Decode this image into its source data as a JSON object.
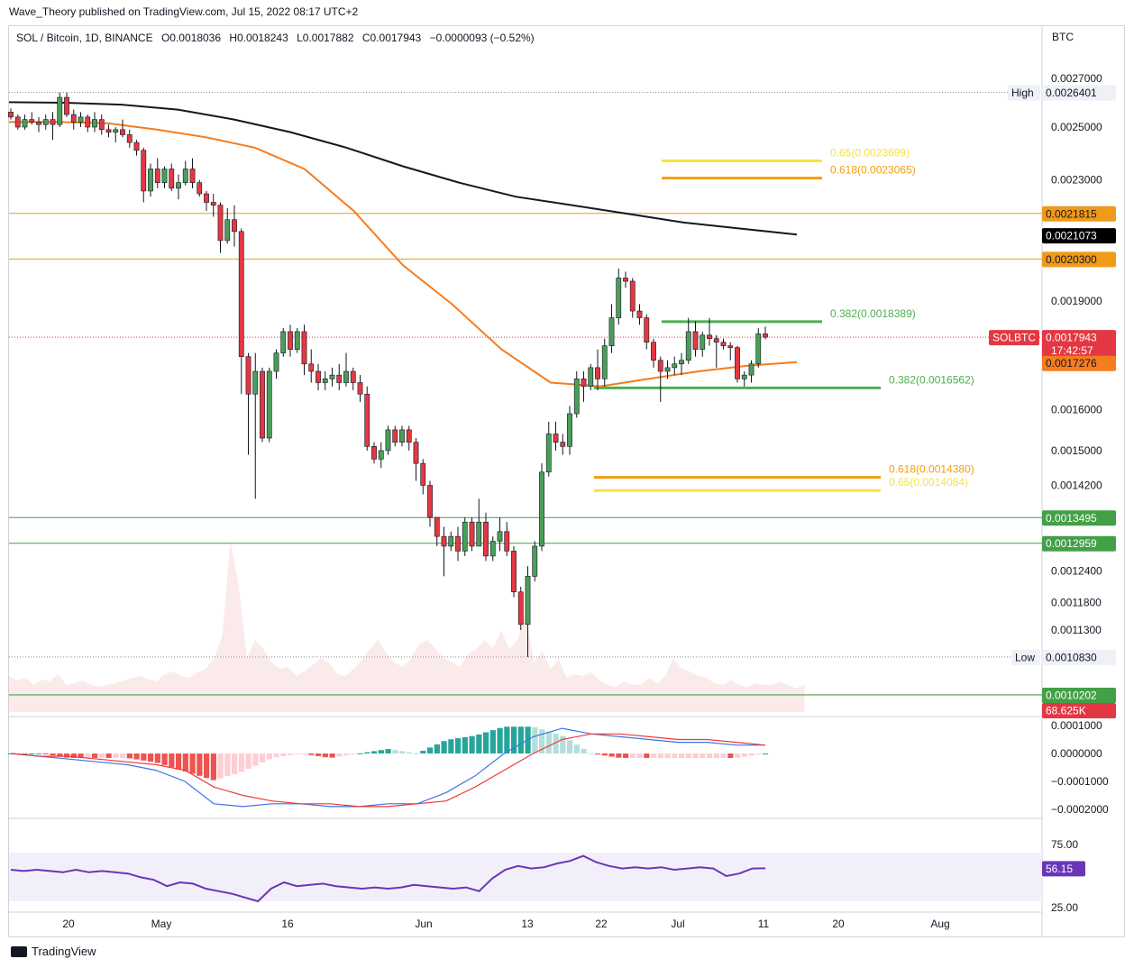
{
  "header": {
    "publisher": "Wave_Theory published on TradingView.com, Jul 15, 2022 08:17 UTC+2"
  },
  "legend": {
    "symbol": "SOL / Bitcoin, 1D, BINANCE",
    "open": "O0.0018036",
    "high": "H0.0018243",
    "low": "L0.0017882",
    "close": "C0.0017943",
    "change": "−0.0000093 (−0.52%)"
  },
  "currency_label": "BTC",
  "footer": {
    "brand": "TradingView"
  },
  "colors": {
    "up": "#4a9e58",
    "down": "#e33843",
    "ema_fast": "#f57c1f",
    "ema_slow": "#131722",
    "fib_618": "#f59e0b",
    "fib_65": "#f5e43c",
    "fib_382": "#4caf50",
    "support": "#43a047",
    "resistance": "#f09a1a",
    "macd": "#3b74e6",
    "signal": "#ef3a3a",
    "rsi": "#6b35b8"
  },
  "chart_data": {
    "type": "candlestick",
    "title": "SOL / Bitcoin, 1D, BINANCE",
    "price_ticks": [
      "0.0027000",
      "0.0025000",
      "0.0023000",
      "0.0019000",
      "0.0016000",
      "0.0015000",
      "0.0014200",
      "0.0012400",
      "0.0011800",
      "0.0011300"
    ],
    "x_ticks": [
      "20",
      "May",
      "16",
      "Jun",
      "13",
      "22",
      "Jul",
      "11",
      "20",
      "Aug"
    ],
    "candles": [
      [
        0.00256,
        0.002575,
        0.00253,
        0.00254
      ],
      [
        0.00254,
        0.00255,
        0.00249,
        0.0025
      ],
      [
        0.0025,
        0.00255,
        0.00249,
        0.00253
      ],
      [
        0.00253,
        0.00256,
        0.00251,
        0.00252
      ],
      [
        0.00252,
        0.00254,
        0.00248,
        0.00251
      ],
      [
        0.00251,
        0.00255,
        0.00249,
        0.00253
      ],
      [
        0.00253,
        0.00256,
        0.00245,
        0.00251
      ],
      [
        0.00251,
        0.00264,
        0.0025,
        0.00262
      ],
      [
        0.00262,
        0.00264,
        0.00254,
        0.00255
      ],
      [
        0.00255,
        0.00257,
        0.00249,
        0.00252
      ],
      [
        0.00252,
        0.00256,
        0.0025,
        0.00254
      ],
      [
        0.00254,
        0.00255,
        0.00248,
        0.0025
      ],
      [
        0.0025,
        0.00256,
        0.00248,
        0.00253
      ],
      [
        0.00253,
        0.00255,
        0.00247,
        0.00249
      ],
      [
        0.00249,
        0.00251,
        0.00246,
        0.00248
      ],
      [
        0.00248,
        0.0025,
        0.00244,
        0.00249
      ],
      [
        0.00249,
        0.00253,
        0.00246,
        0.00247
      ],
      [
        0.00247,
        0.00249,
        0.00242,
        0.00244
      ],
      [
        0.00244,
        0.00245,
        0.00239,
        0.00241
      ],
      [
        0.00241,
        0.00242,
        0.00222,
        0.00226
      ],
      [
        0.00226,
        0.00236,
        0.00224,
        0.00234
      ],
      [
        0.00234,
        0.00238,
        0.00227,
        0.00229
      ],
      [
        0.00229,
        0.00235,
        0.00227,
        0.00234
      ],
      [
        0.00234,
        0.00236,
        0.00226,
        0.00227
      ],
      [
        0.00227,
        0.00232,
        0.00223,
        0.00229
      ],
      [
        0.00229,
        0.00237,
        0.00228,
        0.00234
      ],
      [
        0.00234,
        0.00238,
        0.00227,
        0.00229
      ],
      [
        0.00229,
        0.0023,
        0.00224,
        0.00225
      ],
      [
        0.00225,
        0.00226,
        0.00219,
        0.00222
      ],
      [
        0.00222,
        0.00225,
        0.00217,
        0.00221
      ],
      [
        0.00221,
        0.00222,
        0.00205,
        0.00209
      ],
      [
        0.00209,
        0.0022,
        0.00208,
        0.00216
      ],
      [
        0.00216,
        0.00221,
        0.00207,
        0.00212
      ],
      [
        0.00212,
        0.00213,
        0.00164,
        0.00174
      ],
      [
        0.00174,
        0.00175,
        0.00149,
        0.00164
      ],
      [
        0.00164,
        0.00175,
        0.00139,
        0.0017
      ],
      [
        0.0017,
        0.00171,
        0.00152,
        0.00153
      ],
      [
        0.00153,
        0.00171,
        0.00152,
        0.0017
      ],
      [
        0.0017,
        0.00176,
        0.00168,
        0.00175
      ],
      [
        0.00175,
        0.00182,
        0.00174,
        0.00181
      ],
      [
        0.00181,
        0.00183,
        0.00174,
        0.00176
      ],
      [
        0.00176,
        0.00182,
        0.00175,
        0.00181
      ],
      [
        0.00181,
        0.00183,
        0.00169,
        0.00172
      ],
      [
        0.00172,
        0.00176,
        0.00167,
        0.0017
      ],
      [
        0.0017,
        0.00172,
        0.00165,
        0.00167
      ],
      [
        0.00167,
        0.0017,
        0.00165,
        0.00168
      ],
      [
        0.00168,
        0.00171,
        0.00166,
        0.00169
      ],
      [
        0.00169,
        0.00172,
        0.00165,
        0.00167
      ],
      [
        0.00167,
        0.00175,
        0.00166,
        0.0017
      ],
      [
        0.0017,
        0.00171,
        0.00165,
        0.00167
      ],
      [
        0.00167,
        0.00169,
        0.00162,
        0.00164
      ],
      [
        0.00164,
        0.00166,
        0.0015,
        0.00151
      ],
      [
        0.00151,
        0.00152,
        0.00147,
        0.00148
      ],
      [
        0.00148,
        0.00152,
        0.00146,
        0.0015
      ],
      [
        0.0015,
        0.00156,
        0.00149,
        0.00155
      ],
      [
        0.00155,
        0.00156,
        0.00151,
        0.00152
      ],
      [
        0.00152,
        0.00156,
        0.00151,
        0.00155
      ],
      [
        0.00155,
        0.00156,
        0.0015,
        0.00152
      ],
      [
        0.00152,
        0.00153,
        0.00143,
        0.00147
      ],
      [
        0.00147,
        0.00148,
        0.0014,
        0.00142
      ],
      [
        0.00142,
        0.00143,
        0.00133,
        0.00135
      ],
      [
        0.00135,
        0.00135,
        0.00129,
        0.00131
      ],
      [
        0.00131,
        0.00133,
        0.00123,
        0.00129
      ],
      [
        0.00129,
        0.00132,
        0.00128,
        0.00131
      ],
      [
        0.00131,
        0.00133,
        0.00126,
        0.00128
      ],
      [
        0.00128,
        0.00135,
        0.00127,
        0.00134
      ],
      [
        0.00134,
        0.00135,
        0.00128,
        0.00129
      ],
      [
        0.00129,
        0.00139,
        0.00129,
        0.00134
      ],
      [
        0.00134,
        0.00136,
        0.00126,
        0.00127
      ],
      [
        0.00127,
        0.00131,
        0.00126,
        0.0013
      ],
      [
        0.0013,
        0.00135,
        0.00128,
        0.00132
      ],
      [
        0.00132,
        0.00134,
        0.00127,
        0.00128
      ],
      [
        0.00128,
        0.00129,
        0.00119,
        0.0012
      ],
      [
        0.0012,
        0.00121,
        0.00113,
        0.00114
      ],
      [
        0.00114,
        0.00125,
        0.001083,
        0.00123
      ],
      [
        0.00123,
        0.0013,
        0.00122,
        0.00129
      ],
      [
        0.00129,
        0.00147,
        0.00128,
        0.00145
      ],
      [
        0.00145,
        0.00157,
        0.00144,
        0.00154
      ],
      [
        0.00154,
        0.00157,
        0.0015,
        0.00152
      ],
      [
        0.00152,
        0.00154,
        0.00149,
        0.00151
      ],
      [
        0.00151,
        0.00161,
        0.00149,
        0.00159
      ],
      [
        0.00159,
        0.0017,
        0.00158,
        0.00168
      ],
      [
        0.00168,
        0.0017,
        0.00162,
        0.00166
      ],
      [
        0.00166,
        0.00172,
        0.00165,
        0.00171
      ],
      [
        0.00171,
        0.00176,
        0.00165,
        0.00168
      ],
      [
        0.00168,
        0.00179,
        0.00166,
        0.00177
      ],
      [
        0.00177,
        0.00189,
        0.00175,
        0.00185
      ],
      [
        0.00185,
        0.002,
        0.00183,
        0.00197
      ],
      [
        0.00197,
        0.00199,
        0.00194,
        0.00196
      ],
      [
        0.00196,
        0.00197,
        0.00185,
        0.00187
      ],
      [
        0.00187,
        0.00189,
        0.00183,
        0.00185
      ],
      [
        0.00185,
        0.00186,
        0.00176,
        0.00178
      ],
      [
        0.00178,
        0.00179,
        0.00171,
        0.00173
      ],
      [
        0.00173,
        0.00174,
        0.00162,
        0.0017
      ],
      [
        0.0017,
        0.00173,
        0.00168,
        0.00171
      ],
      [
        0.00171,
        0.00174,
        0.00169,
        0.00172
      ],
      [
        0.00172,
        0.00175,
        0.00169,
        0.00173
      ],
      [
        0.00173,
        0.00185,
        0.00172,
        0.00181
      ],
      [
        0.00181,
        0.00184,
        0.00174,
        0.00176
      ],
      [
        0.00176,
        0.00181,
        0.00174,
        0.0018
      ],
      [
        0.0018,
        0.00185,
        0.00177,
        0.00179
      ],
      [
        0.00179,
        0.0018,
        0.00171,
        0.00178
      ],
      [
        0.00178,
        0.00179,
        0.00176,
        0.00177
      ],
      [
        0.00177,
        0.00178,
        0.00173,
        0.001765
      ],
      [
        0.001765,
        0.00177,
        0.00167,
        0.00168
      ],
      [
        0.00168,
        0.0017,
        0.00166,
        0.00169
      ],
      [
        0.00169,
        0.00173,
        0.00167,
        0.00172
      ],
      [
        0.00172,
        0.00182,
        0.00171,
        0.0018036
      ],
      [
        0.0018036,
        0.0018243,
        0.0017882,
        0.0017943
      ]
    ],
    "ema_slow": [
      0.0026,
      0.002598,
      0.00259,
      0.00257,
      0.00253,
      0.00248,
      0.00242,
      0.00235,
      0.00229,
      0.00224,
      0.00221,
      0.00218,
      0.00215,
      0.00213,
      0.00211
    ],
    "ema_fast": [
      0.00252,
      0.00252,
      0.002515,
      0.00249,
      0.00246,
      0.00242,
      0.00234,
      0.00219,
      0.00201,
      0.00189,
      0.00176,
      0.00167,
      0.00166,
      0.00168,
      0.0017,
      0.001715,
      0.001725
    ],
    "fib_levels": [
      {
        "label": "0.65(0.0023699)",
        "value": 0.0023699,
        "color": "#f5e43c"
      },
      {
        "label": "0.618(0.0023065)",
        "value": 0.0023065,
        "color": "#f59e0b"
      },
      {
        "label": "0.382(0.0018389)",
        "value": 0.0018389,
        "color": "#4caf50"
      },
      {
        "label": "0.382(0.0016562)",
        "value": 0.0016562,
        "color": "#4caf50"
      },
      {
        "label": "0.618(0.0014380)",
        "value": 0.001438,
        "color": "#f59e0b"
      },
      {
        "label": "0.65(0.0014084)",
        "value": 0.0014084,
        "color": "#f5e43c"
      }
    ],
    "horizontal_levels": [
      {
        "value": 0.0021815,
        "label": "0.0021815",
        "color": "#f09a1a"
      },
      {
        "value": 0.00203,
        "label": "0.0020300",
        "color": "#f09a1a"
      },
      {
        "value": 0.0013495,
        "label": "0.0013495",
        "color": "#43a047"
      },
      {
        "value": 0.0012959,
        "label": "0.0012959",
        "color": "#43a047"
      },
      {
        "value": 0.0010202,
        "label": "0.0010202",
        "color": "#43a047"
      }
    ],
    "markers": {
      "high": {
        "label": "High",
        "value": "0.0026401"
      },
      "low": {
        "label": "Low",
        "value": "0.0010830"
      },
      "ema_slow_value": "0.0021073",
      "ema_fast_value": "0.0017276",
      "symbol_tag": "SOLBTC",
      "last_price": "0.0017943",
      "countdown": "17:42:57",
      "volume": "68.625K"
    },
    "macd": {
      "ticks": [
        "0.0001000",
        "0.0000000",
        "−0.0001000",
        "−0.0002000"
      ],
      "macd_line": [
        -0.0,
        -1e-05,
        -2e-05,
        -3e-05,
        -4e-05,
        -6e-05,
        -0.0001,
        -0.00018,
        -0.00019,
        -0.00018,
        -0.00018,
        -0.00019,
        -0.00019,
        -0.00018,
        -0.00018,
        -0.00014,
        -8e-05,
        0.0,
        6e-05,
        9e-05,
        7e-05,
        6e-05,
        5e-05,
        4e-05,
        4e-05,
        3e-05,
        3e-05
      ],
      "signal_line": [
        0.0,
        -1e-05,
        -1e-05,
        -2e-05,
        -3e-05,
        -4e-05,
        -6e-05,
        -0.00012,
        -0.00015,
        -0.00017,
        -0.00018,
        -0.00018,
        -0.00019,
        -0.00019,
        -0.00018,
        -0.00017,
        -0.00012,
        -6e-05,
        0.0,
        5e-05,
        7e-05,
        7e-05,
        6e-05,
        5e-05,
        5e-05,
        4e-05,
        3e-05
      ]
    },
    "rsi": {
      "ticks": [
        "75.00",
        "25.00"
      ],
      "value": "56.15",
      "values": [
        55,
        54,
        55,
        54,
        53,
        55,
        53,
        54,
        53,
        52,
        49,
        47,
        42,
        45,
        44,
        40,
        38,
        36,
        33,
        30,
        40,
        45,
        42,
        43,
        44,
        42,
        41,
        40,
        41,
        40,
        41,
        43,
        42,
        41,
        40,
        41,
        38,
        48,
        55,
        58,
        56,
        57,
        60,
        62,
        66,
        61,
        58,
        56,
        57,
        56,
        57,
        55,
        56,
        57,
        56,
        50,
        52,
        56,
        56.15
      ]
    }
  }
}
